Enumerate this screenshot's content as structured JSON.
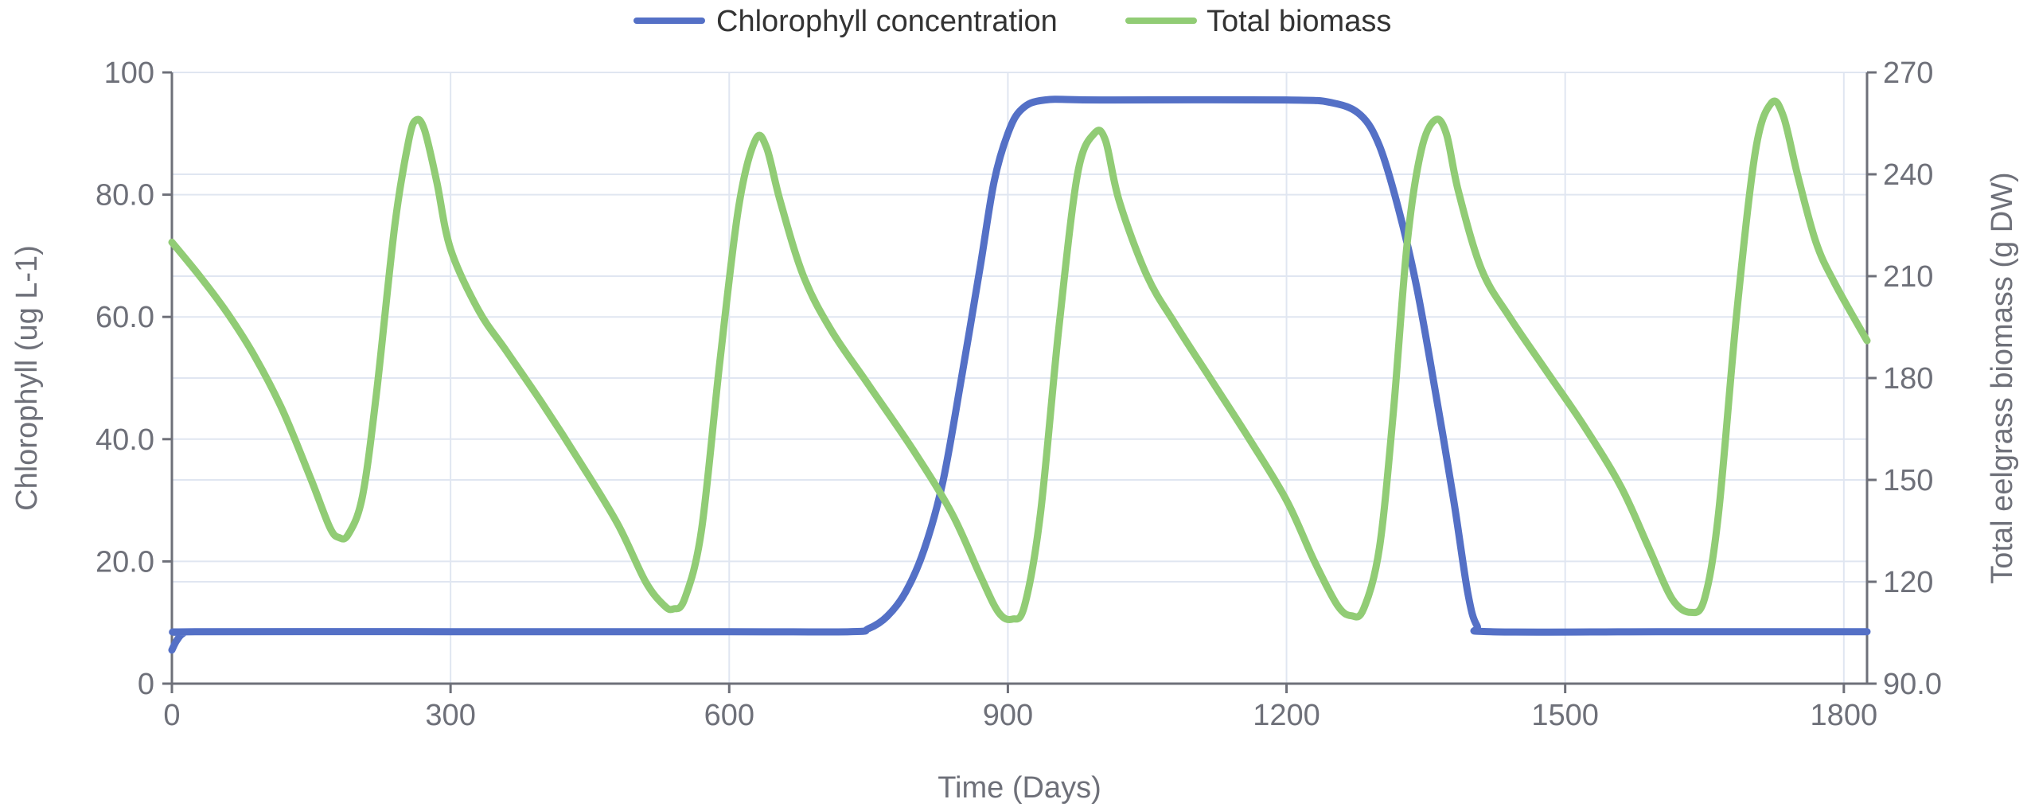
{
  "colors": {
    "chlorophyll": "#5470c6",
    "biomass": "#91cc75",
    "grid": "#e0e6f1",
    "axis": "#6e7079"
  },
  "chart_data": {
    "type": "line",
    "xlabel": "Time (Days)",
    "ylabel_left": "Chlorophyll (ug L-1)",
    "ylabel_right": "Total eelgrass biomass (g DW)",
    "xlim": [
      0,
      1825
    ],
    "ylim_left": [
      0,
      100
    ],
    "ylim_right": [
      90,
      270
    ],
    "x_ticks": [
      "0",
      "300",
      "600",
      "900",
      "1200",
      "1500",
      "1800"
    ],
    "y_left_ticks": [
      "0",
      "20.0",
      "40.0",
      "60.0",
      "80.0",
      "100"
    ],
    "y_right_ticks": [
      "90.0",
      "120",
      "150",
      "180",
      "210",
      "240",
      "270"
    ],
    "grid": true,
    "legend_position": "top-center",
    "series": [
      {
        "name": "Chlorophyll concentration",
        "axis": "left",
        "points": [
          [
            0,
            5.5
          ],
          [
            5,
            7
          ],
          [
            12,
            8.2
          ],
          [
            25,
            8.5
          ],
          [
            300,
            8.5
          ],
          [
            600,
            8.5
          ],
          [
            730,
            8.5
          ],
          [
            750,
            9
          ],
          [
            770,
            11
          ],
          [
            790,
            15
          ],
          [
            810,
            22
          ],
          [
            830,
            33
          ],
          [
            850,
            50
          ],
          [
            870,
            68
          ],
          [
            885,
            82
          ],
          [
            900,
            90
          ],
          [
            915,
            94
          ],
          [
            940,
            95.5
          ],
          [
            1000,
            95.5
          ],
          [
            1200,
            95.5
          ],
          [
            1250,
            95
          ],
          [
            1280,
            93
          ],
          [
            1300,
            88
          ],
          [
            1320,
            78
          ],
          [
            1340,
            65
          ],
          [
            1360,
            48
          ],
          [
            1380,
            30
          ],
          [
            1395,
            15
          ],
          [
            1405,
            9.5
          ],
          [
            1420,
            8.5
          ],
          [
            1600,
            8.5
          ],
          [
            1825,
            8.5
          ]
        ]
      },
      {
        "name": "Total biomass",
        "axis": "right",
        "points": [
          [
            0,
            220
          ],
          [
            30,
            210
          ],
          [
            60,
            199
          ],
          [
            90,
            186
          ],
          [
            120,
            170
          ],
          [
            150,
            150
          ],
          [
            170,
            136
          ],
          [
            180,
            133
          ],
          [
            190,
            134
          ],
          [
            205,
            145
          ],
          [
            220,
            175
          ],
          [
            240,
            225
          ],
          [
            255,
            250
          ],
          [
            263,
            256
          ],
          [
            272,
            253
          ],
          [
            285,
            238
          ],
          [
            300,
            218
          ],
          [
            330,
            200
          ],
          [
            360,
            188
          ],
          [
            400,
            172
          ],
          [
            440,
            155
          ],
          [
            480,
            137
          ],
          [
            510,
            120
          ],
          [
            530,
            113
          ],
          [
            540,
            112
          ],
          [
            552,
            115
          ],
          [
            570,
            135
          ],
          [
            590,
            185
          ],
          [
            610,
            230
          ],
          [
            628,
            250
          ],
          [
            640,
            248
          ],
          [
            655,
            232
          ],
          [
            680,
            210
          ],
          [
            710,
            194
          ],
          [
            750,
            178
          ],
          [
            800,
            158
          ],
          [
            840,
            140
          ],
          [
            870,
            122
          ],
          [
            890,
            111
          ],
          [
            905,
            109
          ],
          [
            918,
            113
          ],
          [
            935,
            140
          ],
          [
            955,
            195
          ],
          [
            975,
            240
          ],
          [
            993,
            252
          ],
          [
            1005,
            250
          ],
          [
            1020,
            232
          ],
          [
            1050,
            210
          ],
          [
            1080,
            196
          ],
          [
            1120,
            179
          ],
          [
            1160,
            162
          ],
          [
            1200,
            144
          ],
          [
            1230,
            126
          ],
          [
            1255,
            113
          ],
          [
            1270,
            110
          ],
          [
            1283,
            112
          ],
          [
            1300,
            130
          ],
          [
            1315,
            170
          ],
          [
            1330,
            220
          ],
          [
            1345,
            247
          ],
          [
            1360,
            256
          ],
          [
            1372,
            252
          ],
          [
            1385,
            235
          ],
          [
            1410,
            212
          ],
          [
            1440,
            198
          ],
          [
            1480,
            182
          ],
          [
            1520,
            166
          ],
          [
            1560,
            148
          ],
          [
            1590,
            130
          ],
          [
            1615,
            115
          ],
          [
            1635,
            111
          ],
          [
            1650,
            115
          ],
          [
            1665,
            140
          ],
          [
            1685,
            200
          ],
          [
            1705,
            247
          ],
          [
            1722,
            261
          ],
          [
            1735,
            257
          ],
          [
            1750,
            240
          ],
          [
            1770,
            220
          ],
          [
            1790,
            208
          ],
          [
            1825,
            191
          ]
        ]
      }
    ]
  }
}
